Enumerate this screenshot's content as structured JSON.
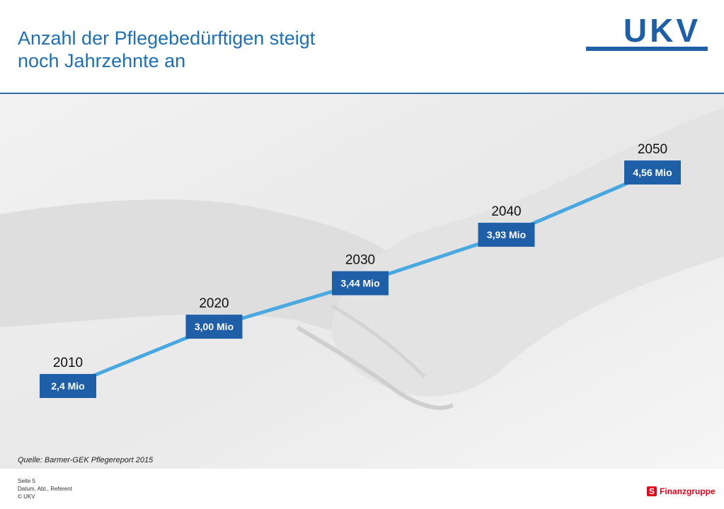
{
  "slide": {
    "title_line1": "Anzahl der Pflegebedürftigen steigt",
    "title_line2": "noch Jahrzehnte an",
    "logo": "UKV",
    "source": "Quelle: Barmer-GEK Pflegereport 2015",
    "footer": {
      "page": "Seite 5",
      "meta": "Datum, Abt., Referent",
      "copyright": "© UKV"
    },
    "brand": "Finanzgruppe",
    "colors": {
      "title": "#1f6fb2",
      "line": "#4aa8e0",
      "box": "#1f5fa8",
      "brand": "#e2001a"
    }
  },
  "chart_data": {
    "type": "line",
    "title": "Anzahl der Pflegebedürftigen steigt noch Jahrzehnte an",
    "x": [
      "2010",
      "2020",
      "2030",
      "2040",
      "2050"
    ],
    "values": [
      2.4,
      3.0,
      3.44,
      3.93,
      4.56
    ],
    "data_labels": [
      "2,4 Mio",
      "3,00 Mio",
      "3,44 Mio",
      "3,93 Mio",
      "4,56 Mio"
    ],
    "grid": false,
    "legend": "none"
  }
}
